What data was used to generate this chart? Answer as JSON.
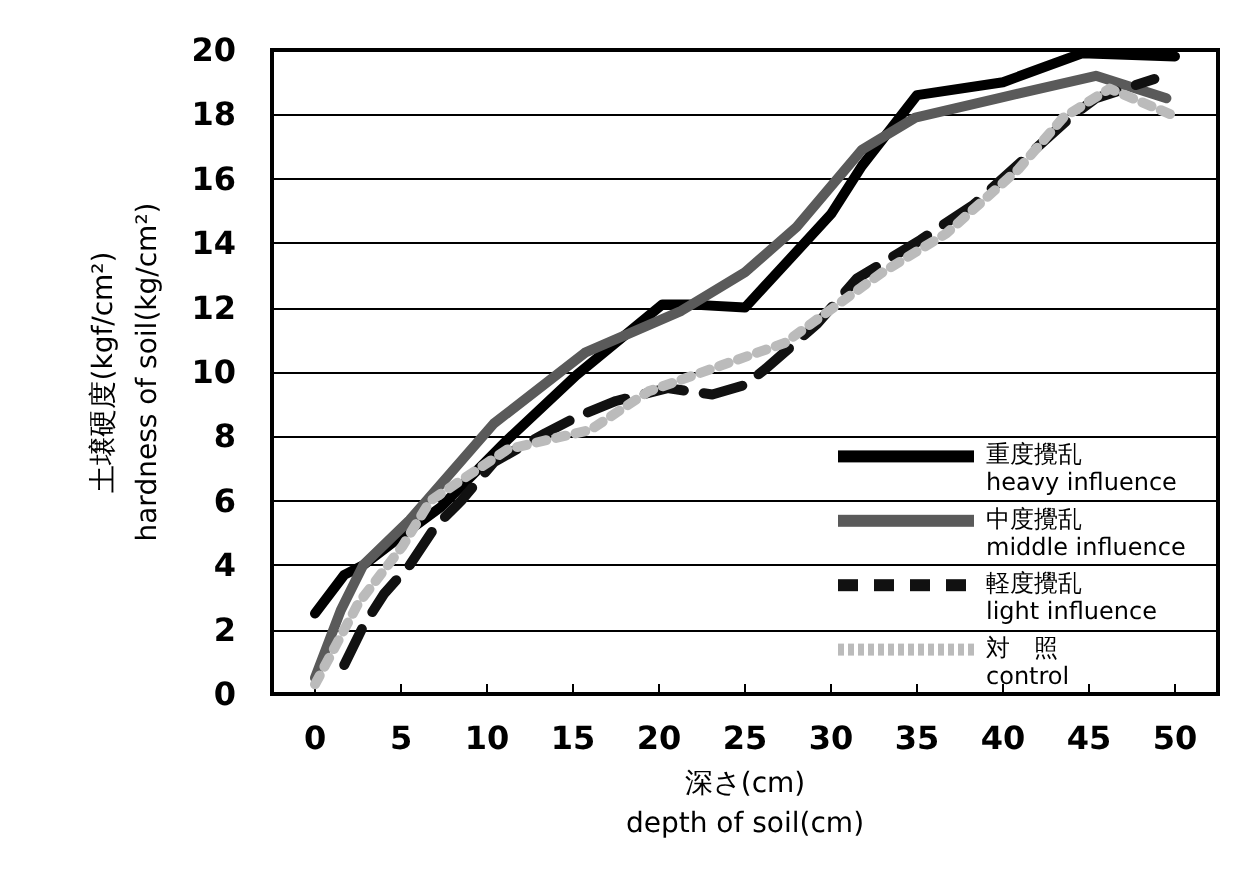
{
  "chart_data": {
    "type": "line",
    "xlabel": "深さ(cm)\ndepth of soil(cm)",
    "ylabel": "土壌硬度(kgf/cm²)\nhardness of soil(kg/cm²)",
    "xlim": [
      -2.5,
      52.5
    ],
    "xticks": [
      0,
      5,
      10,
      15,
      20,
      25,
      30,
      35,
      40,
      45,
      50
    ],
    "ylim": [
      0,
      20
    ],
    "yticks": [
      0,
      2,
      4,
      6,
      8,
      10,
      12,
      14,
      16,
      18,
      20
    ],
    "grid": "y",
    "legend": "bottom right",
    "marker": "none",
    "series": [
      {
        "name": "重度攪乱\nheavy influence",
        "color": "#000000",
        "line_style": "solid",
        "x": [
          0,
          1.7,
          2.8,
          5,
          7.3,
          11.2,
          15.2,
          20.2,
          21.7,
          25,
          30,
          31.8,
          35,
          40,
          44.6,
          50
        ],
        "values": [
          2.5,
          3.7,
          4.0,
          4.9,
          5.8,
          7.9,
          9.9,
          12.1,
          12.1,
          12.0,
          14.9,
          16.4,
          18.6,
          19.0,
          19.9,
          19.8
        ]
      },
      {
        "name": "中度攪乱\nmiddle influence",
        "color": "#5a5a5a",
        "line_style": "solid",
        "x": [
          0,
          1.5,
          2.8,
          5.5,
          10.4,
          15.7,
          21.3,
          25,
          28,
          31.8,
          34.9,
          39.7,
          45.4,
          49.5
        ],
        "values": [
          0.5,
          2.6,
          4.0,
          5.4,
          8.4,
          10.6,
          11.9,
          13.1,
          14.5,
          16.9,
          17.9,
          18.5,
          19.2,
          18.5
        ]
      },
      {
        "name": "軽度攪乱\nlight influence",
        "color": "#111111",
        "line_style": "dashed",
        "x": [
          1.7,
          2.8,
          4,
          5.5,
          7,
          8.5,
          10.4,
          13.4,
          15.2,
          17.5,
          20.5,
          23.1,
          25,
          26.2,
          27.7,
          29.2,
          31.5,
          35.2,
          38.3,
          43.9,
          45.4,
          48.8
        ],
        "values": [
          0.9,
          2.1,
          3.1,
          4.0,
          5.2,
          6.0,
          7.2,
          8.1,
          8.6,
          9.1,
          9.5,
          9.3,
          9.6,
          10.1,
          10.8,
          11.5,
          12.9,
          14.1,
          15.2,
          17.9,
          18.5,
          19.1
        ]
      },
      {
        "name": "対　照\ncontrol",
        "color": "#bbbbbb",
        "line_style": "dotted",
        "x": [
          0,
          2.5,
          5.1,
          6.7,
          11.2,
          16,
          19.4,
          23.6,
          27.3,
          30.4,
          33,
          36.7,
          40.9,
          43.5,
          46.2,
          50.2
        ],
        "values": [
          0.3,
          2.8,
          4.6,
          6.0,
          7.6,
          8.2,
          9.4,
          10.2,
          10.9,
          12.1,
          13.1,
          14.3,
          16.3,
          17.9,
          18.8,
          17.9
        ]
      }
    ]
  }
}
